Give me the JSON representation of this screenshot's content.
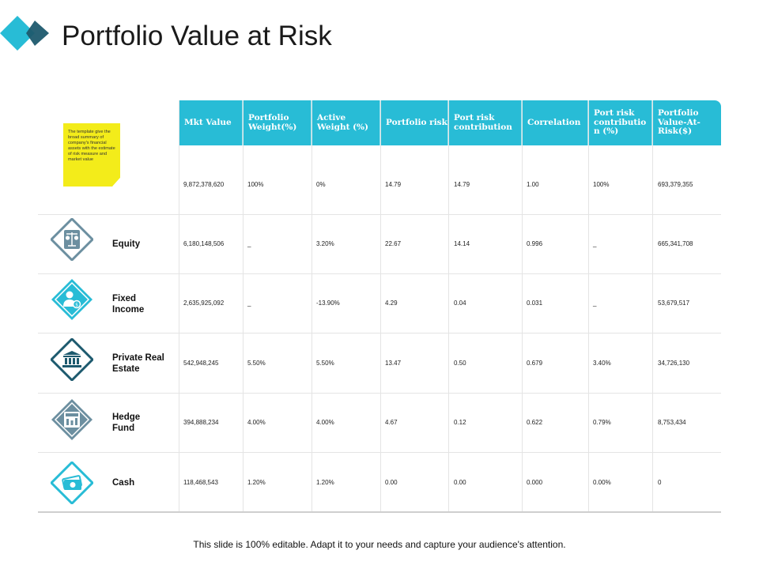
{
  "title": "Portfolio Value at Risk",
  "note": "The template give the broad summary of company's financial assets with the estimate of risk measure and market value",
  "columns": [
    "Mkt Value",
    "Portfolio Weight(%)",
    "Active Weight (%)",
    "Portfolio risk",
    "Port risk contribution",
    "Correlation",
    "Port risk contributio n (%)",
    "Portfolio Value-At-Risk($)"
  ],
  "total": [
    "9,872,378,620",
    "100%",
    "0%",
    "14.79",
    "14.79",
    "1.00",
    "100%",
    "693,379,355"
  ],
  "rows": [
    {
      "label": "Equity",
      "icon": "scales-icon",
      "values": [
        "6,180,148,506",
        "_",
        "3.20%",
        "22.67",
        "14.14",
        "0.996",
        "_",
        "665,341,708"
      ]
    },
    {
      "label": "Fixed Income",
      "icon": "investor-money-icon",
      "values": [
        "2,635,925,092",
        "_",
        "-13.90%",
        "4.29",
        "0.04",
        "0.031",
        "_",
        "53,679,517"
      ]
    },
    {
      "label": "Private Real Estate",
      "icon": "bank-building-icon",
      "values": [
        "542,948,245",
        "5.50%",
        "5.50%",
        "13.47",
        "0.50",
        "0.679",
        "3.40%",
        "34,726,130"
      ]
    },
    {
      "label": "Hedge Fund",
      "icon": "fund-chart-icon",
      "values": [
        "394,888,234",
        "4.00%",
        "4.00%",
        "4.67",
        "0.12",
        "0.622",
        "0.79%",
        "8,753,434"
      ]
    },
    {
      "label": "Cash",
      "icon": "cash-icon",
      "values": [
        "118,468,543",
        "1.20%",
        "1.20%",
        "0.00",
        "0.00",
        "0.000",
        "0.00%",
        "0"
      ]
    }
  ],
  "footer": "This slide is 100% editable. Adapt it to your needs and capture your audience's attention.",
  "colors": {
    "accent": "#28bcd6",
    "dark_teal": "#1d5a6e",
    "slate": "#6c8fa0",
    "note": "#f3ec1a"
  }
}
